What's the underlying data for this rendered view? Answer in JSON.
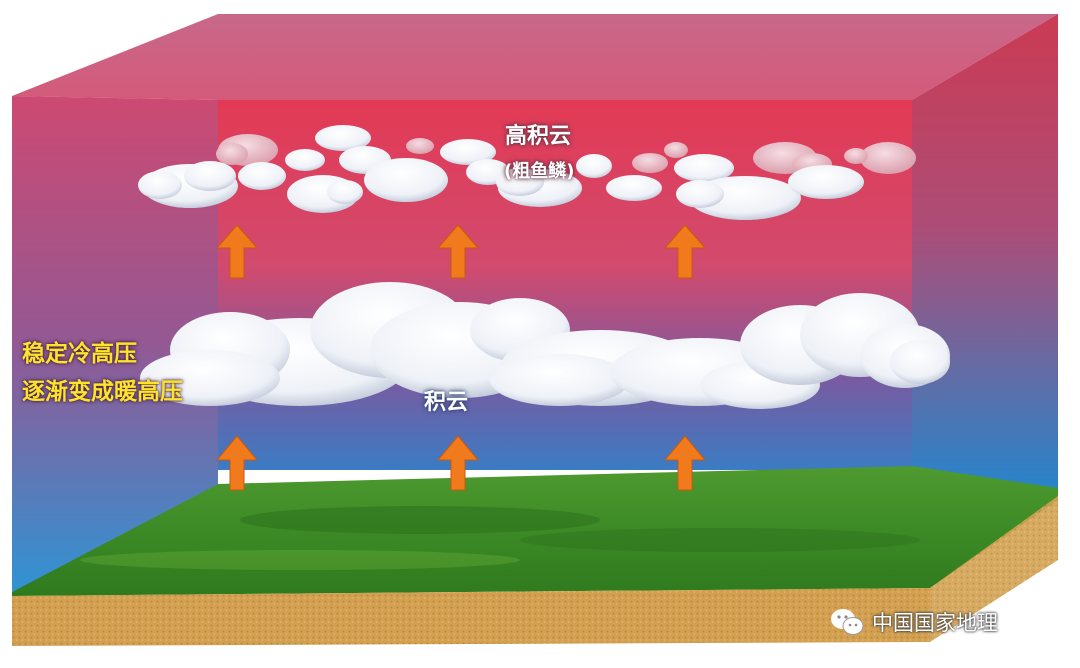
{
  "labels": {
    "high_cloud": "高积云",
    "high_cloud_sub": "(粗鱼鳞)",
    "cumulus": "积云",
    "left_line1": "稳定冷高压",
    "left_line2": "逐渐变成暖高压"
  },
  "watermark": {
    "icon": "wechat-icon",
    "text": "中国国家地理"
  },
  "colors": {
    "top_sky": "#e0485a",
    "bottom_sky": "#2a7fc0",
    "arrow": "#f07a1c",
    "label_yellow": "#ffe22a"
  }
}
